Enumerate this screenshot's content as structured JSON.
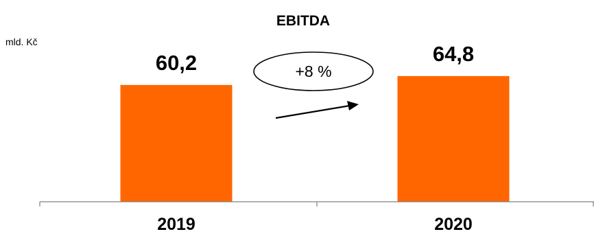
{
  "chart_data": {
    "type": "bar",
    "title": "EBITDA",
    "unit": "mld. Kč",
    "categories": [
      "2019",
      "2020"
    ],
    "values": [
      60.2,
      64.8
    ],
    "value_labels": [
      "60,2",
      "64,8"
    ],
    "ylim": [
      0,
      75
    ],
    "grid": false,
    "annotation": "+8 %",
    "colors": {
      "bar": "#ff6600",
      "axis": "#808080",
      "text": "#000000"
    }
  }
}
